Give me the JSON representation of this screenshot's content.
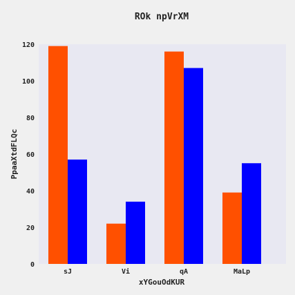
{
  "chart_data": {
    "type": "bar",
    "title": "ROk npVrXM",
    "xlabel": "xYGouOdKUR",
    "ylabel": "PpaaXtdFLQc",
    "categories": [
      "sJ",
      "Vi",
      "qA",
      "MaLp"
    ],
    "series": [
      {
        "values": [
          119,
          22,
          116,
          39
        ],
        "color": "#ff5000"
      },
      {
        "values": [
          57,
          34,
          107,
          55
        ],
        "color": "#0000ff"
      }
    ],
    "ylim": [
      0,
      120
    ],
    "yticks": [
      0,
      20,
      40,
      60,
      80,
      100,
      120
    ],
    "grid": false,
    "legend": "none",
    "plot_background": "#e8e8f2",
    "page_background": "#f0f0f0"
  }
}
